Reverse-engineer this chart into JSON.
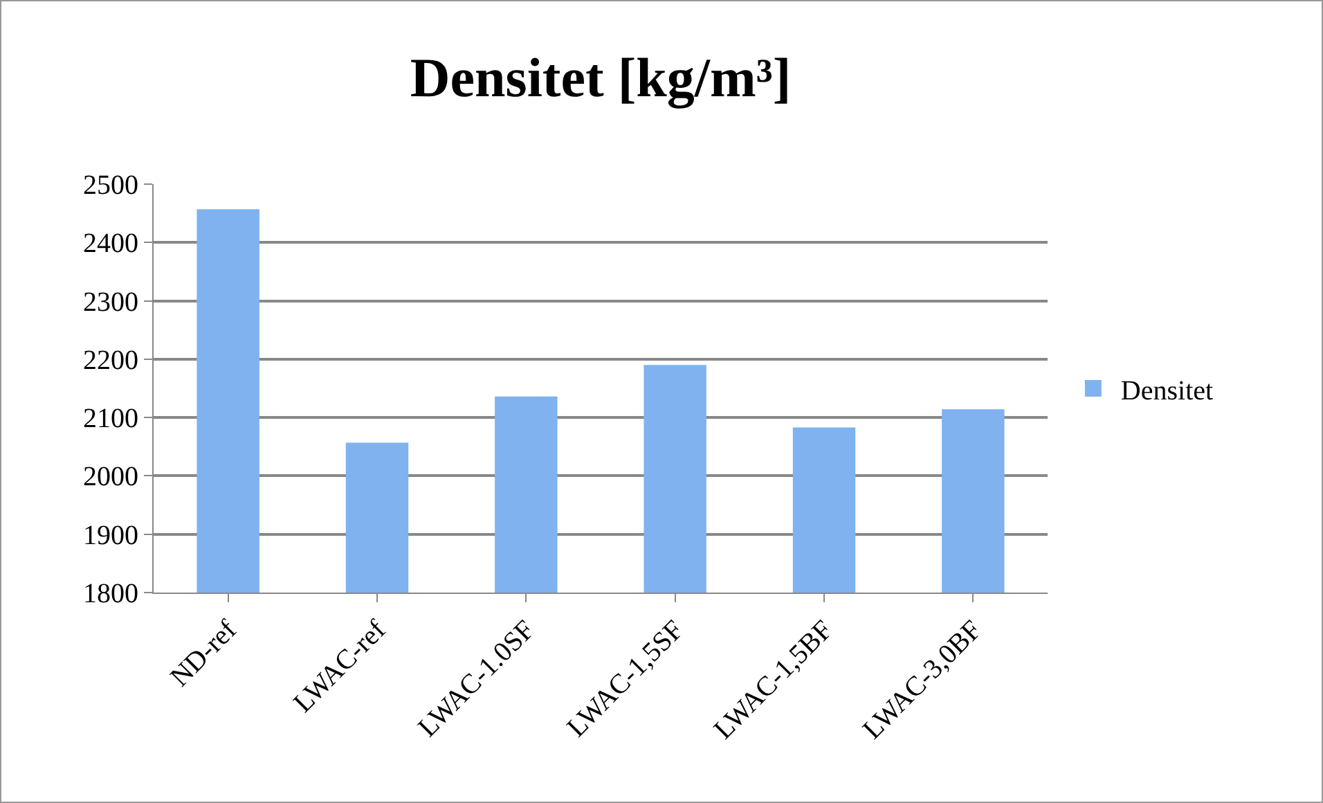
{
  "chart_data": {
    "type": "bar",
    "title": "Densitet [kg/m³]",
    "categories": [
      "ND-ref",
      "LWAC-ref",
      "LWAC-1.0SF",
      "LWAC-1,5SF",
      "LWAC-1,5BF",
      "LWAC-3,0BF"
    ],
    "series": [
      {
        "name": "Densitet",
        "color": "#7fb2ef",
        "values": [
          2457,
          2057,
          2136,
          2190,
          2083,
          2114
        ]
      }
    ],
    "ylim": [
      1800,
      2500
    ],
    "yticks": [
      1800,
      1900,
      2000,
      2100,
      2200,
      2300,
      2400,
      2500
    ],
    "grid": "y",
    "legend": "right"
  }
}
